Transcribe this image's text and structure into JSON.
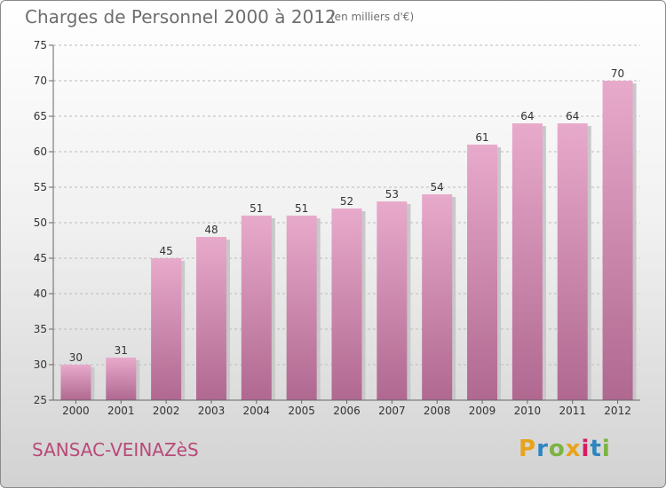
{
  "header": {
    "title": "Charges de Personnel 2000 à 2012",
    "subtitle": "(en milliers d'€)"
  },
  "footer": {
    "commune": "SANSAC-VEINAZèS",
    "logo_text": "Proxiti",
    "logo_colors": [
      "#e8a31c",
      "#2e86c1",
      "#7cb342",
      "#e8a31c",
      "#d81b60",
      "#2e86c1",
      "#7cb342"
    ]
  },
  "colors": {
    "bar_top": "#e8aacb",
    "bar_bottom": "#b06890",
    "bar_shadow": "#c8c8c8",
    "axis": "#666666",
    "grid": "#bbbbbb"
  },
  "chart_data": {
    "type": "bar",
    "categories": [
      "2000",
      "2001",
      "2002",
      "2003",
      "2004",
      "2005",
      "2006",
      "2007",
      "2008",
      "2009",
      "2010",
      "2011",
      "2012"
    ],
    "values": [
      30,
      31,
      45,
      48,
      51,
      51,
      52,
      53,
      54,
      61,
      64,
      64,
      70
    ],
    "ylim": [
      25,
      75
    ],
    "yticks": [
      25,
      30,
      35,
      40,
      45,
      50,
      55,
      60,
      65,
      70,
      75
    ],
    "grid": true,
    "title": "Charges de Personnel 2000 à 2012",
    "subtitle": "(en milliers d'€)",
    "xlabel": "",
    "ylabel": ""
  }
}
